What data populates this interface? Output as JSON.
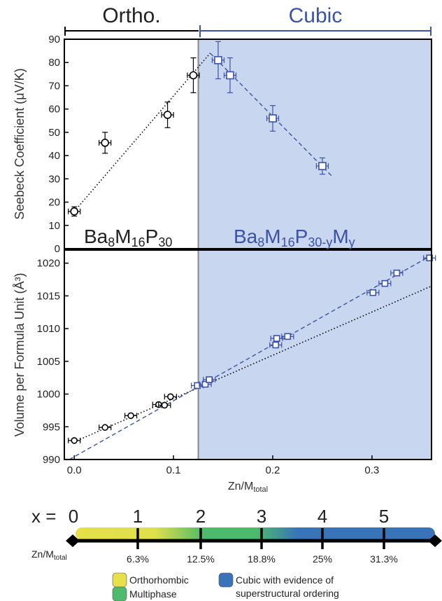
{
  "colors": {
    "ortho": "#000000",
    "cubic": "#3b52a6",
    "cubic_fill": "#c9d6ef",
    "border": "#000000",
    "bar_yellow": "#e6e04a",
    "bar_green": "#4dbb6b",
    "bar_blue": "#3a73b8"
  },
  "header": {
    "ortho_label": "Ortho.",
    "cubic_label": "Cubic"
  },
  "chart_data": [
    {
      "type": "scatter",
      "ylabel": "Seebeck Coefficient (μV/K)",
      "xlim": [
        -0.01,
        0.36
      ],
      "ylim": [
        0,
        90
      ],
      "yticks": [
        0,
        10,
        20,
        30,
        40,
        50,
        60,
        70,
        80,
        90
      ],
      "phase_boundary_x": 0.125,
      "region_labels": {
        "ortho": {
          "base": "Ba",
          "s1": "8",
          "m": "M",
          "s2": "16",
          "p": "P",
          "s3": "30"
        },
        "cubic": {
          "base": "Ba",
          "s1": "8",
          "m": "M",
          "s2": "16",
          "p": "P",
          "s3": "30-y",
          "m2": "M",
          "s4": "y"
        }
      },
      "series": [
        {
          "marker": "circle",
          "color": "#000000",
          "x": [
            0.0,
            0.031,
            0.094,
            0.12
          ],
          "y": [
            16,
            45.5,
            57.5,
            74.5
          ],
          "xerr": [
            0.006,
            0.006,
            0.006,
            0.006
          ],
          "yerr": [
            2,
            4.5,
            5.5,
            7.5
          ]
        },
        {
          "marker": "square",
          "color": "#3b52a6",
          "x": [
            0.145,
            0.157,
            0.2,
            0.25
          ],
          "y": [
            81,
            74.5,
            56,
            35.5
          ],
          "xerr": [
            0.006,
            0.006,
            0.006,
            0.006
          ],
          "yerr": [
            8,
            7.5,
            5.5,
            3.5
          ]
        }
      ],
      "trendlines": [
        {
          "style": "dotted",
          "color": "#000000",
          "x": [
            0.0,
            0.137
          ],
          "y": [
            16,
            84
          ]
        },
        {
          "style": "dashed",
          "color": "#3b52a6",
          "x": [
            0.137,
            0.26
          ],
          "y": [
            84,
            31
          ]
        }
      ]
    },
    {
      "type": "scatter",
      "ylabel": "Volume per Formula Unit (Å³)",
      "xlabel": {
        "base": "Zn/M",
        "sub": "total"
      },
      "xlim": [
        -0.01,
        0.36
      ],
      "ylim": [
        990,
        1022
      ],
      "xticks": [
        0.0,
        0.1,
        0.2,
        0.3
      ],
      "xtick_labels": [
        "0.0",
        "0.1",
        "0.2",
        "0.3"
      ],
      "yticks": [
        990,
        995,
        1000,
        1005,
        1010,
        1015,
        1020
      ],
      "phase_boundary_x": 0.125,
      "series": [
        {
          "marker": "circle",
          "color": "#000000",
          "x": [
            0.0,
            0.031,
            0.057,
            0.085,
            0.091,
            0.097
          ],
          "y": [
            992.9,
            994.9,
            996.7,
            998.4,
            998.3,
            999.6
          ],
          "xerr": 0.006
        },
        {
          "marker": "square",
          "color": "#3b52a6",
          "x": [
            0.124,
            0.132,
            0.136,
            0.203,
            0.204,
            0.215,
            0.301,
            0.313,
            0.325,
            0.358
          ],
          "y": [
            1001.3,
            1001.5,
            1002.2,
            1007.5,
            1008.5,
            1008.8,
            1015.5,
            1016.9,
            1018.5,
            1020.8
          ],
          "xerr": 0.006
        }
      ],
      "trendlines": [
        {
          "style": "dotted",
          "color": "#000000",
          "x": [
            0.0,
            0.36
          ],
          "y": [
            992.7,
            1016.5
          ]
        },
        {
          "style": "dashed",
          "color": "#3b52a6",
          "x": [
            -0.005,
            0.36
          ],
          "y": [
            990.0,
            1021.2
          ]
        }
      ]
    }
  ],
  "composition_bar": {
    "x_prefix": "x = ",
    "x_labels": [
      "0",
      "1",
      "2",
      "3",
      "4",
      "5"
    ],
    "pct_labels": [
      "6.3%",
      "12.5%",
      "18.8%",
      "25%",
      "31.3%"
    ],
    "axis_label": {
      "base": "Zn/M",
      "sub": "total"
    }
  },
  "legend": [
    {
      "label": "Orthorhombic",
      "color": "#e6e04a"
    },
    {
      "label": "Multiphase",
      "color": "#4dbb6b"
    },
    {
      "label_line1": "Cubic with evidence of",
      "label_line2": "superstructural ordering",
      "color": "#3a73b8"
    }
  ]
}
